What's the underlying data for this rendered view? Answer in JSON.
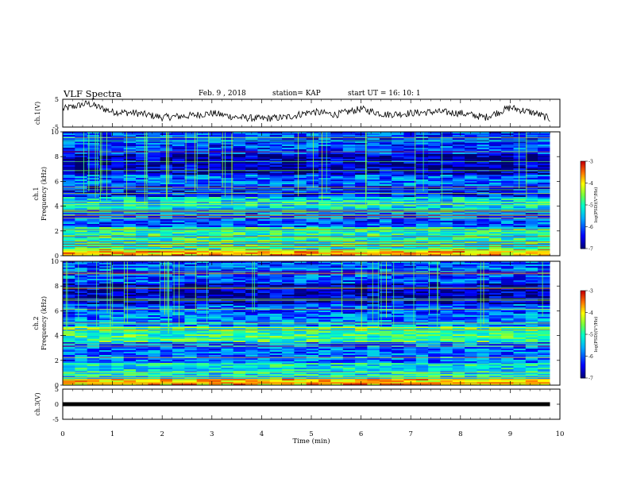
{
  "header": {
    "title": "VLF Spectra",
    "date": "Feb. 9 , 2018",
    "station": "station= KAP",
    "start": "start  UT =   16: 10: 1"
  },
  "chart_data": [
    {
      "type": "line",
      "panel": "ch1-waveform",
      "ylabel": "ch.1(V)",
      "ylim": [
        -5,
        5
      ],
      "yticks": [
        "5",
        "-5"
      ],
      "xlim": [
        0,
        10
      ],
      "x": [
        0,
        0.5,
        1,
        1.5,
        2,
        2.5,
        3,
        3.5,
        4,
        4.5,
        5,
        5.5,
        6,
        6.5,
        7,
        7.5,
        8,
        8.5,
        9,
        9.5,
        9.8
      ],
      "y": [
        1.5,
        3.5,
        0.5,
        0,
        -1.5,
        -1,
        0,
        -1.5,
        -2,
        -1.5,
        0.5,
        -0.5,
        1.5,
        -0.5,
        0,
        0.5,
        0,
        -1.5,
        2,
        0,
        -2
      ]
    },
    {
      "type": "heatmap",
      "panel": "ch1-spectrogram",
      "ylabel": "ch.1\nFrequency (kHz)",
      "ylabel_line1": "ch.1",
      "ylabel_line2": "Frequency (kHz)",
      "ylim": [
        0,
        10
      ],
      "yticks": [
        "0",
        "2",
        "4",
        "6",
        "8",
        "10"
      ],
      "xlim": [
        0,
        10
      ],
      "colorbar": {
        "label": "log(PSD)(V²/Hz)",
        "range": [
          -7,
          -3
        ],
        "ticks": [
          "-3",
          "-4",
          "-5",
          "-6",
          "-7"
        ]
      },
      "bands_khz": [
        {
          "from": 0,
          "to": 0.5,
          "level": -3.8
        },
        {
          "from": 0.5,
          "to": 2.3,
          "level": -5.0
        },
        {
          "from": 2.3,
          "to": 3.5,
          "level": -6.0
        },
        {
          "from": 3.5,
          "to": 4.8,
          "level": -5.3
        },
        {
          "from": 4.8,
          "to": 5.6,
          "level": -6.3
        },
        {
          "from": 5.6,
          "to": 6.5,
          "level": -5.9
        },
        {
          "from": 6.5,
          "to": 8.2,
          "level": -6.7
        },
        {
          "from": 8.2,
          "to": 10,
          "level": -6.1
        }
      ]
    },
    {
      "type": "heatmap",
      "panel": "ch2-spectrogram",
      "ylabel": "ch.2\nFrequency (kHz)",
      "ylabel_line1": "ch.2",
      "ylabel_line2": "Frequency (kHz)",
      "ylim": [
        0,
        10
      ],
      "yticks": [
        "0",
        "2",
        "4",
        "6",
        "8",
        "10"
      ],
      "xlim": [
        0,
        10
      ],
      "colorbar": {
        "label": "log(PSD)(V²/Hz)",
        "range": [
          -7,
          -3
        ],
        "ticks": [
          "-3",
          "-4",
          "-5",
          "-6",
          "-7"
        ]
      },
      "bands_khz": [
        {
          "from": 0,
          "to": 0.5,
          "level": -3.8
        },
        {
          "from": 0.5,
          "to": 1.8,
          "level": -5.2
        },
        {
          "from": 1.8,
          "to": 3.5,
          "level": -5.9
        },
        {
          "from": 3.5,
          "to": 4.8,
          "level": -4.9
        },
        {
          "from": 4.8,
          "to": 5.8,
          "level": -5.8
        },
        {
          "from": 5.8,
          "to": 6.5,
          "level": -6.0
        },
        {
          "from": 6.5,
          "to": 8.2,
          "level": -6.7
        },
        {
          "from": 8.2,
          "to": 10,
          "level": -6.0
        }
      ]
    },
    {
      "type": "line",
      "panel": "ch3-waveform",
      "ylabel": "ch.3(V)",
      "ylim": [
        -5,
        5
      ],
      "yticks": [
        "5",
        "0",
        "-5"
      ],
      "xlim": [
        0,
        10
      ],
      "x": [
        0,
        9.8
      ],
      "y": [
        0,
        0
      ]
    }
  ],
  "xaxis": {
    "label": "Time  (min)",
    "ticks": [
      "0",
      "1",
      "2",
      "3",
      "4",
      "5",
      "6",
      "7",
      "8",
      "9",
      "10"
    ]
  }
}
